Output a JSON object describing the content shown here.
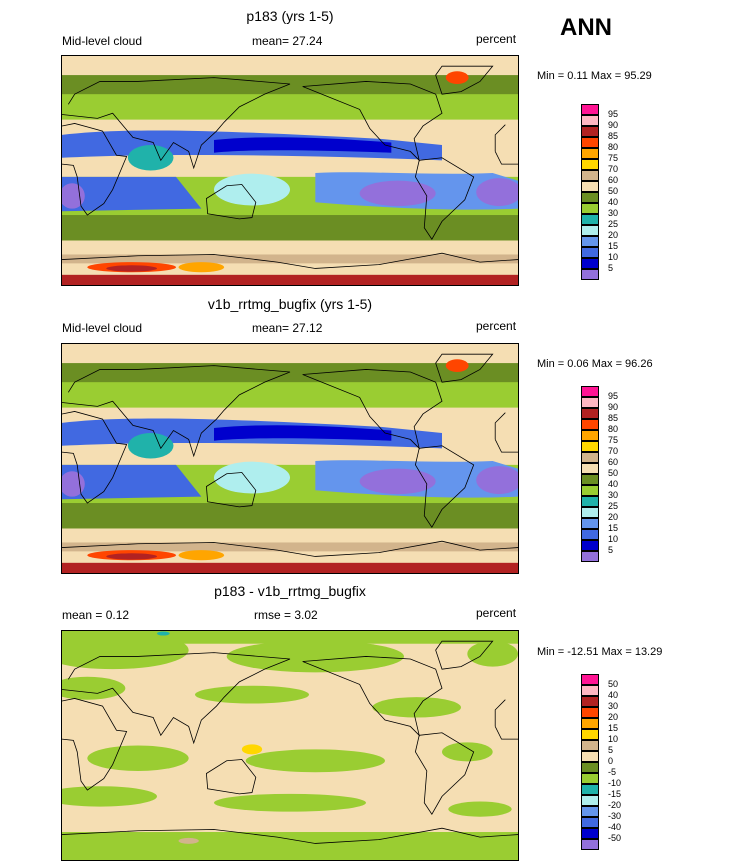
{
  "figure": {
    "season": "ANN",
    "palette_steps": 16
  },
  "panels": [
    {
      "id": "p1",
      "title": "p183 (yrs 1-5)",
      "left_label": "Mid-level cloud",
      "center_label": "mean=  27.24",
      "right_label": "percent",
      "minmax": "Min =   0.11 Max =   95.29",
      "colorbar": {
        "labels": [
          "95",
          "90",
          "85",
          "80",
          "75",
          "70",
          "60",
          "50",
          "40",
          "30",
          "25",
          "20",
          "15",
          "10",
          "5"
        ],
        "colors": [
          "#ff1493",
          "#ffb6c1",
          "#b22222",
          "#ff4500",
          "#ffa500",
          "#ffd700",
          "#d2b48c",
          "#f5deb3",
          "#6b8e23",
          "#9acd32",
          "#20b2aa",
          "#afeeee",
          "#6495ed",
          "#4169e1",
          "#0000cd",
          "#9370db"
        ]
      },
      "fill_scheme": "cloud"
    },
    {
      "id": "p2",
      "title": "v1b_rrtmg_bugfix (yrs 1-5)",
      "left_label": "Mid-level cloud",
      "center_label": "mean=  27.12",
      "right_label": "percent",
      "minmax": "Min =   0.06 Max =   96.26",
      "colorbar": {
        "labels": [
          "95",
          "90",
          "85",
          "80",
          "75",
          "70",
          "60",
          "50",
          "40",
          "30",
          "25",
          "20",
          "15",
          "10",
          "5"
        ],
        "colors": [
          "#ff1493",
          "#ffb6c1",
          "#b22222",
          "#ff4500",
          "#ffa500",
          "#ffd700",
          "#d2b48c",
          "#f5deb3",
          "#6b8e23",
          "#9acd32",
          "#20b2aa",
          "#afeeee",
          "#6495ed",
          "#4169e1",
          "#0000cd",
          "#9370db"
        ]
      },
      "fill_scheme": "cloud"
    },
    {
      "id": "p3",
      "title": "p183 - v1b_rrtmg_bugfix",
      "left_label": "mean =   0.12",
      "center_label": "rmse =   3.02",
      "right_label": "percent",
      "minmax": "Min = -12.51 Max =  13.29",
      "colorbar": {
        "labels": [
          "50",
          "40",
          "30",
          "20",
          "15",
          "10",
          "5",
          "0",
          "-5",
          "-10",
          "-15",
          "-20",
          "-30",
          "-40",
          "-50"
        ],
        "colors": [
          "#ff1493",
          "#ffb6c1",
          "#b22222",
          "#ff4500",
          "#ffa500",
          "#ffd700",
          "#d2b48c",
          "#f5deb3",
          "#6b8e23",
          "#9acd32",
          "#20b2aa",
          "#afeeee",
          "#6495ed",
          "#4169e1",
          "#0000cd",
          "#9370db"
        ]
      },
      "fill_scheme": "diff"
    }
  ],
  "chart_data": {
    "type": "heatmap",
    "variable": "Mid-level cloud",
    "units": "percent",
    "season": "ANN",
    "maps": [
      {
        "title": "p183 (yrs 1-5)",
        "mean": 27.24,
        "min": 0.11,
        "max": 95.29,
        "levels": [
          5,
          10,
          15,
          20,
          25,
          30,
          40,
          50,
          60,
          70,
          75,
          80,
          85,
          90,
          95
        ]
      },
      {
        "title": "v1b_rrtmg_bugfix (yrs 1-5)",
        "mean": 27.12,
        "min": 0.06,
        "max": 96.26,
        "levels": [
          5,
          10,
          15,
          20,
          25,
          30,
          40,
          50,
          60,
          70,
          75,
          80,
          85,
          90,
          95
        ]
      },
      {
        "title": "p183 - v1b_rrtmg_bugfix",
        "mean": 0.12,
        "rmse": 3.02,
        "min": -12.51,
        "max": 13.29,
        "levels": [
          -50,
          -40,
          -30,
          -20,
          -15,
          -10,
          -5,
          0,
          5,
          10,
          15,
          20,
          30,
          40,
          50
        ]
      }
    ]
  }
}
